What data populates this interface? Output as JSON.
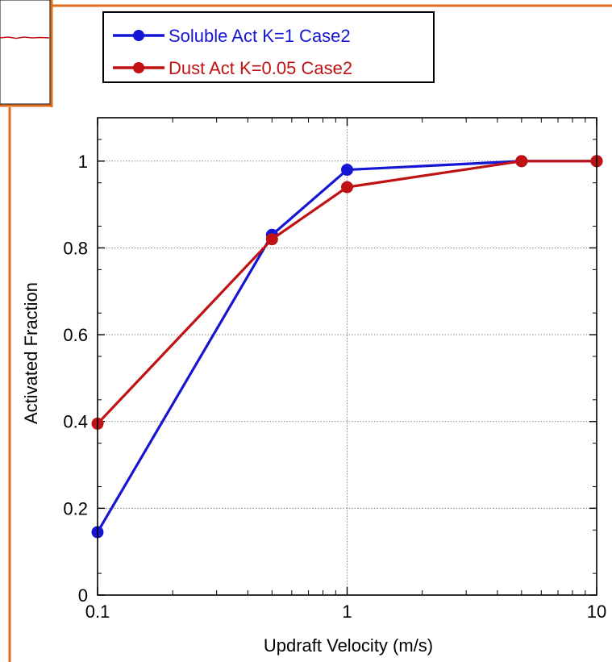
{
  "colors": {
    "frame_accent": "#e06c1a",
    "gridline": "#7a7a7a",
    "series_blue": "#1515d4",
    "series_red": "#c01212",
    "inset_trace": "#c01212"
  },
  "chart_data": {
    "type": "line",
    "title": "",
    "xlabel": "Updraft Velocity (m/s)",
    "ylabel": "Activated Fraction",
    "xscale": "log",
    "xlim": [
      0.1,
      10
    ],
    "ylim": [
      0,
      1.1
    ],
    "xticks": [
      0.1,
      1,
      10
    ],
    "xtick_labels": [
      "0.1",
      "1",
      "10"
    ],
    "yticks": [
      0,
      0.2,
      0.4,
      0.6,
      0.8,
      1
    ],
    "ytick_labels": [
      "0",
      "0.2",
      "0.4",
      "0.6",
      "0.8",
      "1"
    ],
    "grid": "dotted",
    "legend_position": "top",
    "series": [
      {
        "name": "Soluble Act K=1 Case2",
        "color": "#1515d4",
        "x": [
          0.1,
          0.5,
          1,
          5,
          10
        ],
        "y": [
          0.145,
          0.83,
          0.98,
          1.0,
          1.0
        ]
      },
      {
        "name": "Dust Act K=0.05 Case2",
        "color": "#c01212",
        "x": [
          0.1,
          0.5,
          1,
          5,
          10
        ],
        "y": [
          0.395,
          0.82,
          0.94,
          1.0,
          1.0
        ]
      }
    ]
  }
}
